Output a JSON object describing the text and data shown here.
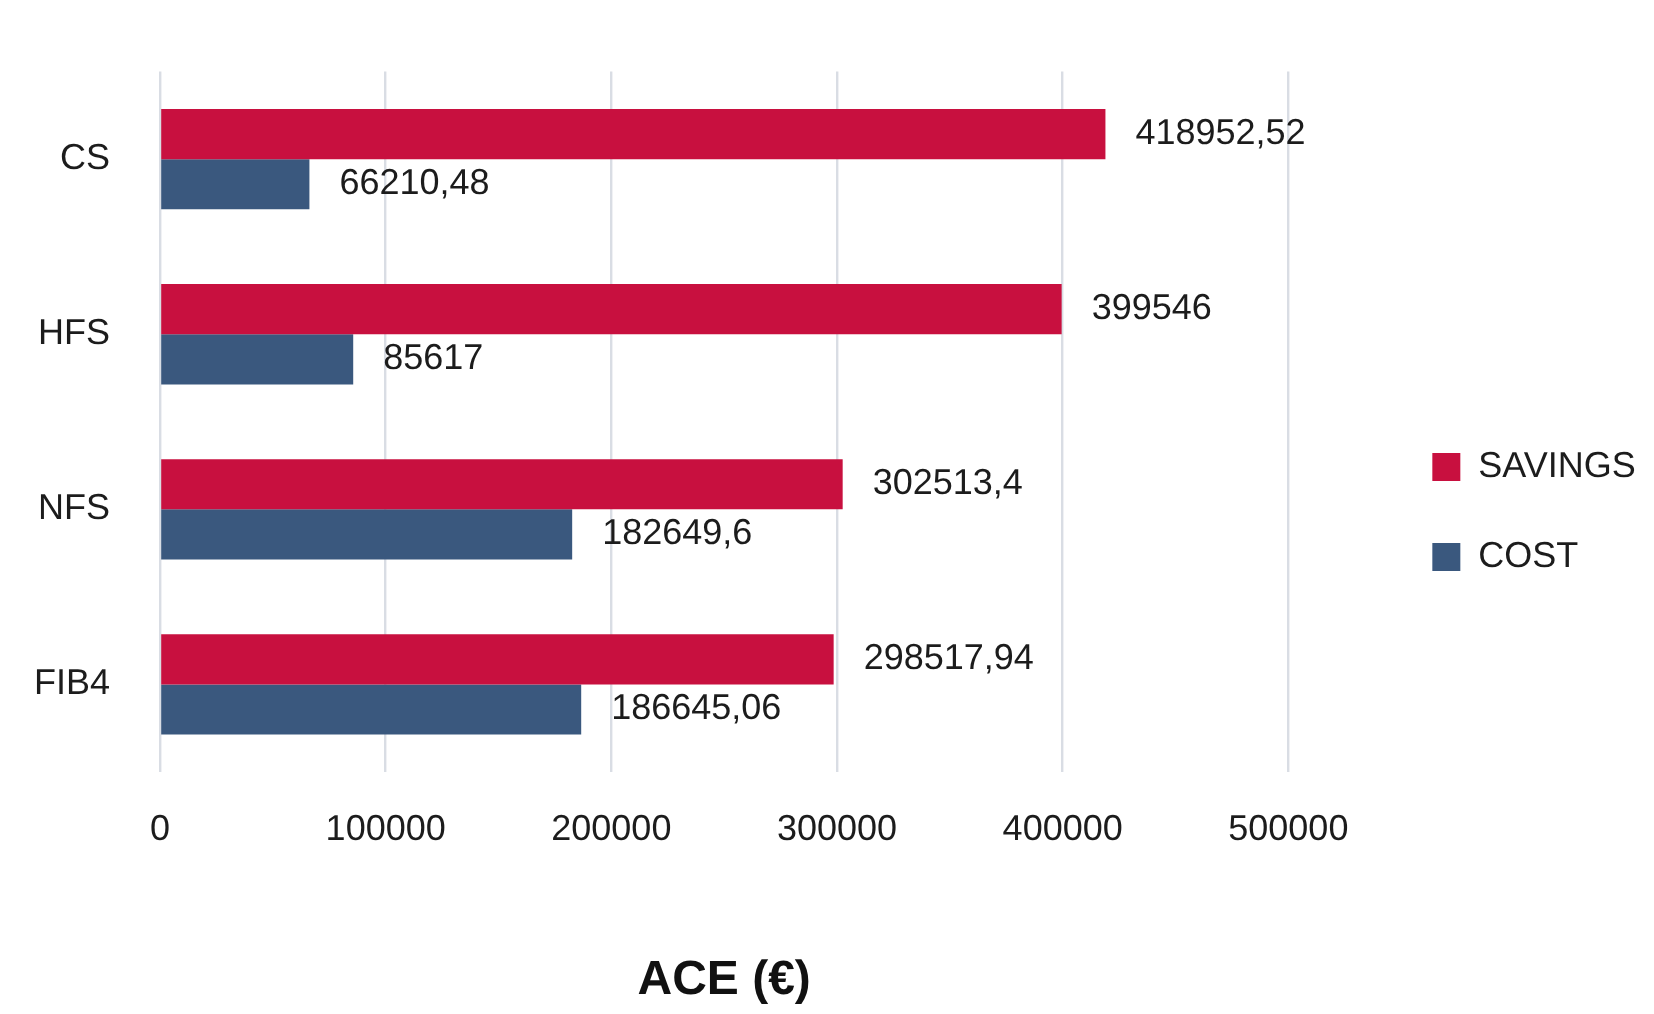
{
  "chart_data": {
    "type": "bar",
    "orientation": "horizontal",
    "categories": [
      "CS",
      "HFS",
      "NFS",
      "FIB4"
    ],
    "series": [
      {
        "name": "SAVINGS",
        "color": "#c8103f",
        "values": [
          418952.52,
          399546,
          302513.4,
          298517.94
        ],
        "value_labels": [
          "418952,52",
          "399546",
          "302513,4",
          "298517,94"
        ]
      },
      {
        "name": "COST",
        "color": "#3a587e",
        "values": [
          66210.48,
          85617,
          182649.6,
          186645.06
        ],
        "value_labels": [
          "66210,48",
          "85617",
          "182649,6",
          "186645,06"
        ]
      }
    ],
    "xlim": [
      0,
      500000
    ],
    "xticks": [
      0,
      100000,
      200000,
      300000,
      400000,
      500000
    ],
    "xlabel": "ACE (€)",
    "grid": "x",
    "legend": "right"
  }
}
